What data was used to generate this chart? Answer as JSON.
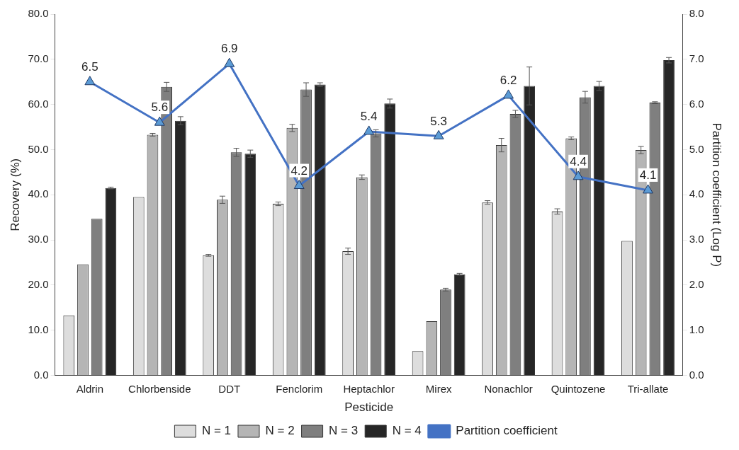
{
  "chart_data": {
    "type": "bar",
    "xlabel": "Pesticide",
    "ylabel": "Recovery (%)",
    "y2label": "Partition coefficient (Log P)",
    "categories": [
      "Aldrin",
      "Chlorbenside",
      "DDT",
      "Fenclorim",
      "Heptachlor",
      "Mirex",
      "Nonachlor",
      "Quintozene",
      "Tri-allate"
    ],
    "series": [
      {
        "name": "N = 1",
        "color": "#dddddd",
        "values": [
          13.3,
          39.5,
          26.6,
          38.0,
          27.5,
          5.4,
          38.3,
          36.3,
          29.8
        ],
        "errors": [
          null,
          null,
          0.2,
          0.4,
          0.7,
          null,
          0.4,
          0.6,
          null
        ]
      },
      {
        "name": "N = 2",
        "color": "#b5b5b5",
        "values": [
          24.6,
          53.3,
          38.9,
          54.8,
          43.9,
          12.0,
          51.0,
          52.5,
          49.9
        ],
        "errors": [
          null,
          0.3,
          0.8,
          0.8,
          0.5,
          null,
          1.5,
          0.3,
          0.8
        ]
      },
      {
        "name": "N = 3",
        "color": "#7f7f7f",
        "values": [
          34.7,
          63.9,
          49.4,
          63.3,
          53.6,
          19.0,
          57.9,
          61.6,
          60.4
        ],
        "errors": [
          null,
          1.0,
          0.9,
          1.5,
          0.8,
          0.3,
          0.8,
          1.3,
          0.2
        ]
      },
      {
        "name": "N = 4",
        "color": "#262626",
        "values": [
          41.5,
          56.4,
          49.1,
          64.4,
          60.2,
          22.4,
          64.1,
          64.1,
          69.8
        ],
        "errors": [
          0.2,
          0.9,
          0.8,
          0.4,
          1.0,
          0.2,
          4.2,
          1.0,
          0.6
        ]
      },
      {
        "name": "Partition coefficient",
        "type": "line",
        "axis": "y2",
        "color": "#4472c4",
        "marker": "triangle",
        "values": [
          6.5,
          5.6,
          6.9,
          4.2,
          5.4,
          5.3,
          6.2,
          4.4,
          4.1
        ],
        "value_labels": [
          "6.5",
          "5.6",
          "6.9",
          "4.2",
          "5.4",
          "5.3",
          "6.2",
          "4.4",
          "4.1"
        ]
      }
    ],
    "ylim": [
      0,
      80
    ],
    "yticks": [
      {
        "value": 0,
        "label": "0.0"
      },
      {
        "value": 10,
        "label": "10.0"
      },
      {
        "value": 20,
        "label": "20.0"
      },
      {
        "value": 30,
        "label": "30.0"
      },
      {
        "value": 40,
        "label": "40.0"
      },
      {
        "value": 50,
        "label": "50.0"
      },
      {
        "value": 60,
        "label": "60.0"
      },
      {
        "value": 70,
        "label": "70.0"
      },
      {
        "value": 80,
        "label": "80.0"
      }
    ],
    "y2lim": [
      0,
      8
    ],
    "y2ticks": [
      {
        "value": 0,
        "label": "0.0"
      },
      {
        "value": 1,
        "label": "1.0"
      },
      {
        "value": 2,
        "label": "2.0"
      },
      {
        "value": 3,
        "label": "3.0"
      },
      {
        "value": 4,
        "label": "4.0"
      },
      {
        "value": 5,
        "label": "5.0"
      },
      {
        "value": 6,
        "label": "6.0"
      },
      {
        "value": 7,
        "label": "7.0"
      },
      {
        "value": 8,
        "label": "8.0"
      }
    ],
    "grid": false,
    "legend": "bottom"
  }
}
